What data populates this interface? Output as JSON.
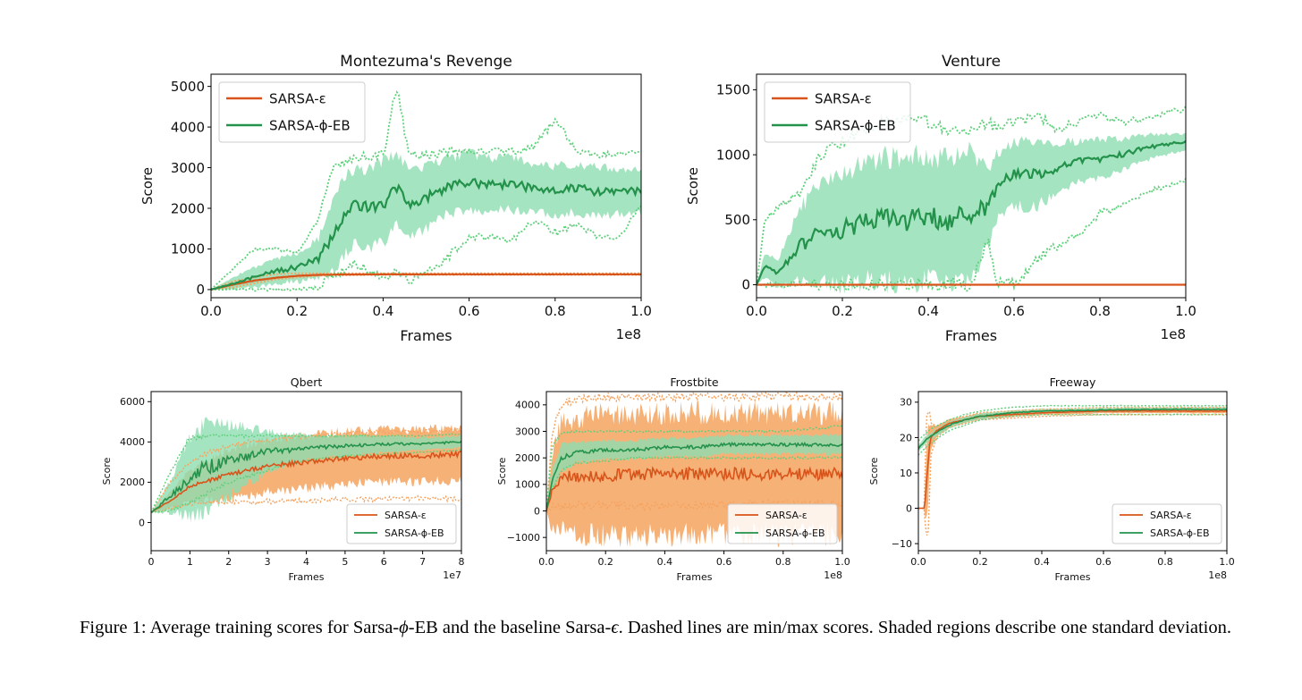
{
  "caption": {
    "p1": "Figure 1: Average training scores for Sarsa-",
    "phi": "ϕ",
    "p2": "-EB and the baseline Sarsa-",
    "eps": "ϵ",
    "p3": ". Dashed lines are min/max scores. Shaded regions describe one standard deviation."
  },
  "colors": {
    "eps_line": "#d9541a",
    "eps_fill": "#f5a35f",
    "eps_dash": "#f5a35f",
    "eb_line": "#23924b",
    "eb_fill": "#8fddb0",
    "eb_dash": "#5fd07c"
  },
  "chart_data": [
    {
      "type": "line",
      "title": "Montezuma's Revenge",
      "xlabel": "Frames",
      "ylabel": "Score",
      "xlim": [
        0,
        1.0
      ],
      "ylim": [
        -200,
        5300
      ],
      "x_ticks": [
        "0.0",
        "0.2",
        "0.4",
        "0.6",
        "0.8",
        "1.0"
      ],
      "x_tick_values": [
        0,
        0.2,
        0.4,
        0.6,
        0.8,
        1.0
      ],
      "y_ticks": [
        "0",
        "1000",
        "2000",
        "3000",
        "4000",
        "5000"
      ],
      "y_tick_values": [
        0,
        1000,
        2000,
        3000,
        4000,
        5000
      ],
      "x_multiplier": "1e8",
      "legend": "top-left",
      "series": [
        {
          "name": "SARSA-ε",
          "x": [
            0,
            0.05,
            0.1,
            0.15,
            0.2,
            0.25,
            0.3,
            0.4,
            0.5,
            0.6,
            0.7,
            0.8,
            0.9,
            1.0
          ],
          "mean": [
            0,
            120,
            220,
            290,
            340,
            360,
            370,
            375,
            375,
            375,
            375,
            375,
            375,
            375
          ],
          "std": [
            0,
            40,
            40,
            30,
            25,
            20,
            15,
            15,
            15,
            15,
            15,
            15,
            15,
            15
          ],
          "min": [
            0,
            50,
            150,
            250,
            300,
            340,
            350,
            360,
            360,
            360,
            360,
            360,
            360,
            360
          ],
          "max": [
            0,
            200,
            300,
            380,
            400,
            400,
            400,
            400,
            400,
            400,
            400,
            400,
            400,
            400
          ]
        },
        {
          "name": "SARSA-ϕ-EB",
          "x": [
            0,
            0.05,
            0.1,
            0.15,
            0.2,
            0.25,
            0.28,
            0.3,
            0.33,
            0.36,
            0.4,
            0.43,
            0.46,
            0.5,
            0.55,
            0.6,
            0.65,
            0.7,
            0.75,
            0.8,
            0.85,
            0.9,
            0.95,
            1.0
          ],
          "mean": [
            0,
            150,
            300,
            450,
            550,
            750,
            1300,
            1700,
            2050,
            2000,
            2100,
            2500,
            2100,
            2250,
            2550,
            2650,
            2600,
            2600,
            2500,
            2450,
            2500,
            2400,
            2400,
            2450
          ],
          "std": [
            0,
            150,
            250,
            300,
            350,
            500,
            900,
            1000,
            900,
            950,
            1000,
            900,
            800,
            750,
            700,
            700,
            650,
            650,
            600,
            600,
            600,
            600,
            550,
            550
          ],
          "min": [
            0,
            0,
            0,
            0,
            0,
            50,
            350,
            400,
            650,
            500,
            300,
            500,
            200,
            400,
            800,
            1300,
            1300,
            1200,
            1700,
            1400,
            1600,
            1300,
            1300,
            2100
          ],
          "max": [
            0,
            500,
            1000,
            1000,
            900,
            1700,
            3000,
            3100,
            3200,
            3300,
            3300,
            5000,
            3300,
            3300,
            3400,
            3400,
            3400,
            3400,
            3500,
            4200,
            3400,
            3300,
            3400,
            3400
          ]
        }
      ]
    },
    {
      "type": "line",
      "title": "Venture",
      "xlabel": "Frames",
      "ylabel": "Score",
      "xlim": [
        0,
        1.0
      ],
      "ylim": [
        -100,
        1620
      ],
      "x_ticks": [
        "0.0",
        "0.2",
        "0.4",
        "0.6",
        "0.8",
        "1.0"
      ],
      "x_tick_values": [
        0,
        0.2,
        0.4,
        0.6,
        0.8,
        1.0
      ],
      "y_ticks": [
        "0",
        "500",
        "1000",
        "1500"
      ],
      "y_tick_values": [
        0,
        500,
        1000,
        1500
      ],
      "x_multiplier": "1e8",
      "legend": "top-left",
      "series": [
        {
          "name": "SARSA-ε",
          "x": [
            0,
            0.1,
            0.2,
            0.3,
            0.4,
            0.5,
            0.6,
            0.7,
            0.8,
            0.9,
            1.0
          ],
          "mean": [
            0,
            0,
            0,
            0,
            0,
            0,
            0,
            0,
            0,
            0,
            0
          ],
          "std": [
            0,
            0,
            0,
            0,
            0,
            0,
            0,
            0,
            0,
            0,
            0
          ],
          "min": [
            0,
            0,
            0,
            0,
            0,
            0,
            0,
            0,
            0,
            0,
            0
          ],
          "max": [
            0,
            0,
            0,
            0,
            0,
            0,
            0,
            0,
            0,
            0,
            0
          ]
        },
        {
          "name": "SARSA-ϕ-EB",
          "x": [
            0,
            0.02,
            0.05,
            0.1,
            0.15,
            0.2,
            0.25,
            0.3,
            0.35,
            0.4,
            0.45,
            0.5,
            0.54,
            0.56,
            0.6,
            0.65,
            0.7,
            0.75,
            0.8,
            0.85,
            0.9,
            0.95,
            1.0
          ],
          "mean": [
            0,
            150,
            80,
            300,
            400,
            420,
            480,
            500,
            500,
            520,
            480,
            550,
            600,
            750,
            850,
            850,
            900,
            950,
            970,
            1000,
            1050,
            1080,
            1100
          ],
          "std": [
            0,
            100,
            100,
            280,
            400,
            420,
            450,
            480,
            480,
            480,
            480,
            480,
            300,
            250,
            250,
            250,
            200,
            150,
            150,
            120,
            100,
            80,
            60
          ],
          "min": [
            0,
            0,
            0,
            0,
            0,
            0,
            0,
            0,
            0,
            0,
            0,
            0,
            350,
            0,
            0,
            200,
            300,
            400,
            550,
            600,
            700,
            750,
            800
          ],
          "max": [
            0,
            500,
            600,
            700,
            1000,
            1100,
            1200,
            1250,
            1300,
            1250,
            1200,
            1200,
            1250,
            1200,
            1250,
            1300,
            1200,
            1250,
            1300,
            1250,
            1280,
            1320,
            1350
          ]
        }
      ]
    },
    {
      "type": "line",
      "title": "Qbert",
      "xlabel": "Frames",
      "ylabel": "Score",
      "xlim": [
        0,
        8
      ],
      "ylim": [
        -1400,
        6500
      ],
      "x_ticks": [
        "0",
        "1",
        "2",
        "3",
        "4",
        "5",
        "6",
        "7",
        "8"
      ],
      "x_tick_values": [
        0,
        1,
        2,
        3,
        4,
        5,
        6,
        7,
        8
      ],
      "y_ticks": [
        "0",
        "2000",
        "4000",
        "6000"
      ],
      "y_tick_values": [
        0,
        2000,
        4000,
        6000
      ],
      "x_multiplier": "1e7",
      "legend": "lower-right",
      "series": [
        {
          "name": "SARSA-ε",
          "x": [
            0,
            0.5,
            1,
            1.5,
            2,
            2.5,
            3,
            3.5,
            4,
            5,
            6,
            7,
            8
          ],
          "mean": [
            500,
            1100,
            1800,
            2100,
            2400,
            2600,
            2800,
            2900,
            3000,
            3200,
            3300,
            3300,
            3400
          ],
          "std": [
            0,
            400,
            800,
            1000,
            1200,
            1300,
            1300,
            1300,
            1300,
            1300,
            1300,
            1300,
            1300
          ],
          "min": [
            500,
            700,
            900,
            1000,
            1000,
            1000,
            1050,
            1050,
            1100,
            1150,
            1150,
            1200,
            1200
          ],
          "max": [
            500,
            2000,
            3000,
            3500,
            3800,
            4000,
            4100,
            4200,
            4300,
            4400,
            4500,
            4500,
            4600
          ]
        },
        {
          "name": "SARSA-ϕ-EB",
          "x": [
            0,
            0.5,
            1,
            1.5,
            2,
            2.5,
            3,
            3.5,
            4,
            5,
            6,
            7,
            8
          ],
          "mean": [
            500,
            1300,
            2300,
            2800,
            3100,
            3300,
            3500,
            3600,
            3700,
            3800,
            3900,
            3900,
            4000
          ],
          "std": [
            0,
            800,
            2000,
            2200,
            1800,
            1400,
            1000,
            800,
            600,
            500,
            400,
            300,
            300
          ],
          "min": [
            500,
            600,
            1000,
            1500,
            2000,
            2300,
            2600,
            2900,
            3100,
            3300,
            3400,
            3500,
            3600
          ],
          "max": [
            500,
            2500,
            4200,
            4300,
            4300,
            4300,
            4300,
            4300,
            4300,
            4300,
            4300,
            4300,
            4400
          ]
        }
      ]
    },
    {
      "type": "line",
      "title": "Frostbite",
      "xlabel": "Frames",
      "ylabel": "Score",
      "xlim": [
        0,
        1.0
      ],
      "ylim": [
        -1500,
        4500
      ],
      "x_ticks": [
        "0.0",
        "0.2",
        "0.4",
        "0.6",
        "0.8",
        "1.0"
      ],
      "x_tick_values": [
        0,
        0.2,
        0.4,
        0.6,
        0.8,
        1.0
      ],
      "y_ticks": [
        "−1000",
        "0",
        "1000",
        "2000",
        "3000",
        "4000"
      ],
      "y_tick_values": [
        -1000,
        0,
        1000,
        2000,
        3000,
        4000
      ],
      "x_multiplier": "1e8",
      "legend": "lower-right",
      "series": [
        {
          "name": "SARSA-ε",
          "x": [
            0,
            0.02,
            0.05,
            0.1,
            0.2,
            0.4,
            0.6,
            0.8,
            1.0
          ],
          "mean": [
            0,
            800,
            1300,
            1300,
            1350,
            1400,
            1400,
            1400,
            1400
          ],
          "std": [
            0,
            1500,
            2000,
            2200,
            2300,
            2300,
            2300,
            2300,
            2300
          ],
          "min": [
            0,
            150,
            200,
            200,
            200,
            200,
            250,
            250,
            250
          ],
          "max": [
            0,
            3000,
            4000,
            4200,
            4300,
            4300,
            4300,
            4300,
            4300
          ]
        },
        {
          "name": "SARSA-ϕ-EB",
          "x": [
            0,
            0.02,
            0.05,
            0.1,
            0.2,
            0.3,
            0.4,
            0.5,
            0.6,
            0.7,
            0.8,
            0.9,
            1.0
          ],
          "mean": [
            0,
            1200,
            2000,
            2200,
            2300,
            2300,
            2400,
            2400,
            2500,
            2500,
            2500,
            2500,
            2500
          ],
          "std": [
            0,
            400,
            500,
            400,
            350,
            350,
            350,
            350,
            350,
            350,
            350,
            350,
            350
          ],
          "min": [
            0,
            800,
            1500,
            1800,
            1900,
            2000,
            2000,
            2000,
            2000,
            2000,
            2000,
            2000,
            2000
          ],
          "max": [
            0,
            2500,
            2900,
            3000,
            3000,
            3000,
            3000,
            3000,
            3000,
            3000,
            3000,
            3100,
            3200
          ]
        }
      ]
    },
    {
      "type": "line",
      "title": "Freeway",
      "xlabel": "Frames",
      "ylabel": "Score",
      "xlim": [
        0,
        1.0
      ],
      "ylim": [
        -12,
        33
      ],
      "x_ticks": [
        "0.0",
        "0.2",
        "0.4",
        "0.6",
        "0.8",
        "1.0"
      ],
      "x_tick_values": [
        0,
        0.2,
        0.4,
        0.6,
        0.8,
        1.0
      ],
      "y_ticks": [
        "−10",
        "0",
        "10",
        "20",
        "30"
      ],
      "y_tick_values": [
        -10,
        0,
        10,
        20,
        30
      ],
      "x_multiplier": "1e8",
      "legend": "lower-right",
      "series": [
        {
          "name": "SARSA-ε",
          "x": [
            0,
            0.02,
            0.025,
            0.03,
            0.035,
            0.04,
            0.06,
            0.1,
            0.2,
            0.4,
            0.6,
            0.8,
            1.0
          ],
          "mean": [
            0,
            0,
            5,
            10,
            17,
            20,
            22,
            24,
            26,
            27,
            27.5,
            27.5,
            27.5
          ],
          "std": [
            0,
            0,
            10,
            12,
            6,
            3,
            1.5,
            1,
            0.8,
            0.6,
            0.6,
            0.6,
            0.6
          ],
          "min": [
            0,
            0,
            -9,
            -9,
            0,
            15,
            20,
            23,
            25,
            26,
            26.5,
            26.5,
            26.5
          ],
          "max": [
            0,
            0,
            25,
            28,
            28,
            24,
            23,
            25,
            27,
            28,
            28.5,
            28.5,
            28.5
          ]
        },
        {
          "name": "SARSA-ϕ-EB",
          "x": [
            0,
            0.02,
            0.05,
            0.1,
            0.15,
            0.2,
            0.3,
            0.4,
            0.6,
            0.8,
            1.0
          ],
          "mean": [
            17,
            19,
            21,
            23.5,
            25,
            26,
            27,
            27.5,
            27.8,
            28,
            28
          ],
          "std": [
            1,
            1,
            1,
            1,
            0.8,
            0.8,
            0.7,
            0.6,
            0.6,
            0.6,
            0.6
          ],
          "min": [
            15,
            17,
            19,
            22,
            23.5,
            25,
            26,
            26.5,
            26.5,
            26.5,
            26.5
          ],
          "max": [
            19,
            21,
            23,
            25,
            26.5,
            27.5,
            28.5,
            29,
            29,
            29,
            29
          ]
        }
      ]
    }
  ]
}
